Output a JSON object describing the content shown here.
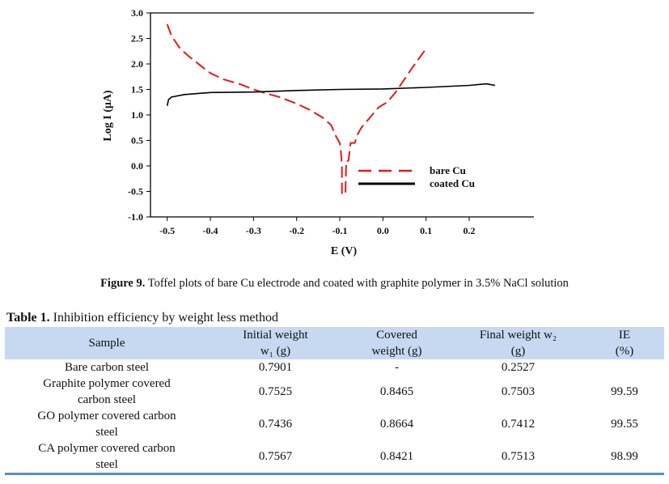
{
  "chart_data": {
    "type": "line",
    "xlabel": "E (V)",
    "ylabel": "Log I (μA)",
    "xlim": [
      -0.54,
      0.28
    ],
    "ylim": [
      -1.0,
      3.0
    ],
    "xticks": [
      "-0.5",
      "-0.4",
      "-0.3",
      "-0.2",
      "-0.1",
      "0.0",
      "0.1",
      "0.2"
    ],
    "yticks": [
      "-1.0",
      "-0.5",
      "0.0",
      "0.5",
      "1.0",
      "1.5",
      "2.0",
      "2.5",
      "3.0"
    ],
    "legend_position": "bottom-right",
    "series": [
      {
        "name": "bare Cu",
        "color": "#e31b1b",
        "style": "dashed",
        "x": [
          -0.5,
          -0.49,
          -0.47,
          -0.45,
          -0.42,
          -0.4,
          -0.37,
          -0.33,
          -0.3,
          -0.27,
          -0.24,
          -0.2,
          -0.17,
          -0.14,
          -0.12,
          -0.11,
          -0.1,
          -0.097,
          -0.095,
          -0.095,
          -0.087,
          -0.085,
          -0.08,
          -0.075,
          -0.065,
          -0.06,
          -0.05,
          -0.03,
          -0.01,
          0.01,
          0.03,
          0.05,
          0.07,
          0.1
        ],
        "y": [
          2.78,
          2.55,
          2.3,
          2.15,
          1.95,
          1.82,
          1.7,
          1.6,
          1.5,
          1.42,
          1.35,
          1.22,
          1.1,
          0.95,
          0.8,
          0.6,
          0.45,
          0.25,
          0.0,
          -0.55,
          -0.55,
          0.1,
          0.1,
          0.45,
          0.45,
          0.6,
          0.75,
          0.95,
          1.15,
          1.25,
          1.45,
          1.7,
          1.95,
          2.3
        ]
      },
      {
        "name": "coated Cu",
        "color": "#000000",
        "style": "solid",
        "x": [
          -0.5,
          -0.497,
          -0.49,
          -0.46,
          -0.4,
          -0.3,
          -0.2,
          -0.1,
          0.0,
          0.1,
          0.2,
          0.24,
          0.26
        ],
        "y": [
          1.18,
          1.3,
          1.35,
          1.4,
          1.44,
          1.45,
          1.48,
          1.5,
          1.51,
          1.54,
          1.58,
          1.61,
          1.58
        ]
      }
    ]
  },
  "caption": {
    "label": "Figure 9.",
    "text": " Toffel plots of bare Cu electrode and coated with graphite polymer in 3.5%  NaCl solution"
  },
  "table": {
    "title_label": "Table 1.",
    "title_text": " Inhibition efficiency by weight less method",
    "headers": [
      [
        "Sample",
        ""
      ],
      [
        "Initial weight",
        "w₁ (g)"
      ],
      [
        "Covered",
        "weight (g)"
      ],
      [
        "Final weight w₂",
        "(g)"
      ],
      [
        "IE",
        "(%)"
      ]
    ],
    "rows": [
      [
        [
          "Bare carbon steel"
        ],
        "0.7901",
        "-",
        "0.2527",
        ""
      ],
      [
        [
          "Graphite polymer covered",
          "carbon steel"
        ],
        "0.7525",
        "0.8465",
        "0.7503",
        "99.59"
      ],
      [
        [
          "GO polymer covered carbon",
          "steel"
        ],
        "0.7436",
        "0.8664",
        "0.7412",
        "99.55"
      ],
      [
        [
          "CA polymer covered carbon",
          "steel"
        ],
        "0.7567",
        "0.8421",
        "0.7513",
        "98.99"
      ]
    ]
  }
}
